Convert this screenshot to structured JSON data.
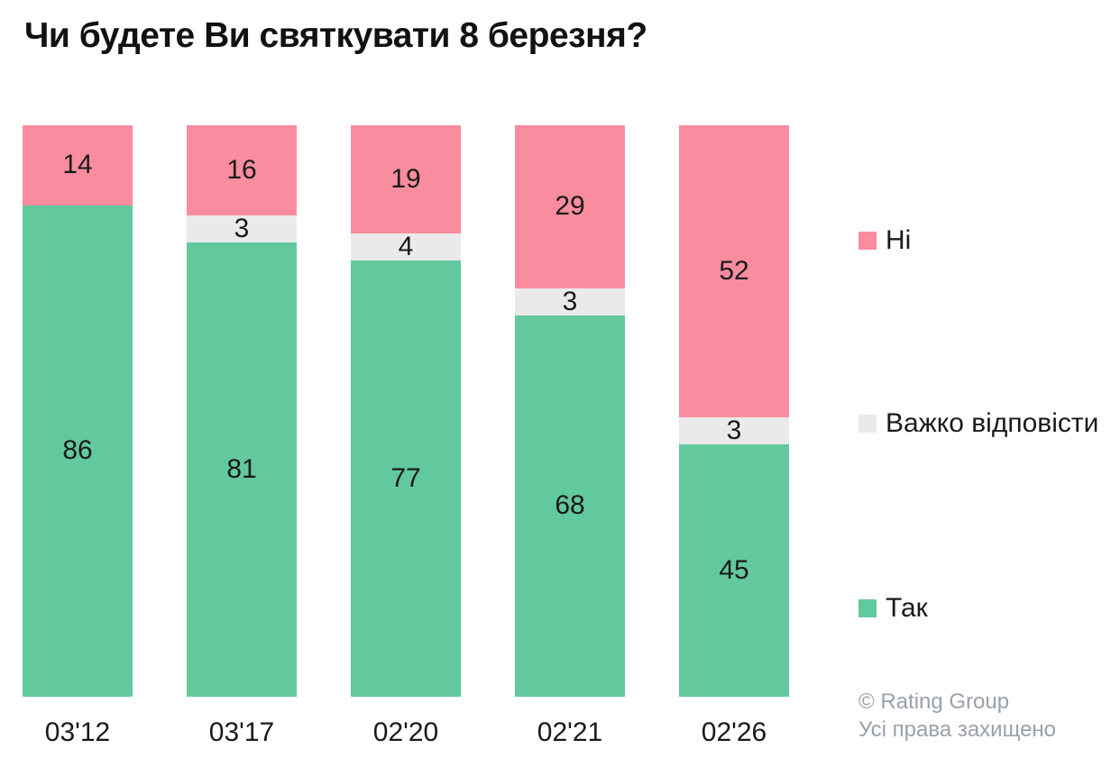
{
  "title": "Чи будете Ви святкувати 8 березня?",
  "chart_data": {
    "type": "bar",
    "stacked": true,
    "unit": "percent",
    "title": "Чи будете Ви святкувати 8 березня?",
    "categories": [
      "03'12",
      "03'17",
      "02'20",
      "02'21",
      "02'26"
    ],
    "series": [
      {
        "name": "Так",
        "color": "#62c89e",
        "values": [
          86,
          81,
          77,
          68,
          45
        ]
      },
      {
        "name": "Важко відповісти",
        "color": "#eaeaea",
        "values": [
          0,
          3,
          4,
          3,
          3
        ]
      },
      {
        "name": "Ні",
        "color": "#fa8ca0",
        "values": [
          14,
          16,
          19,
          29,
          52
        ]
      }
    ],
    "ylim": [
      0,
      100
    ],
    "grid": false,
    "legend_position": "right"
  },
  "legend": {
    "items": [
      {
        "label": "Ні",
        "color": "#fa8ca0"
      },
      {
        "label": "Важко відповісти",
        "color": "#eaeaea"
      },
      {
        "label": "Так",
        "color": "#62c89e"
      }
    ]
  },
  "footer": {
    "line1": "© Rating Group",
    "line2": "Усі права захищено"
  }
}
